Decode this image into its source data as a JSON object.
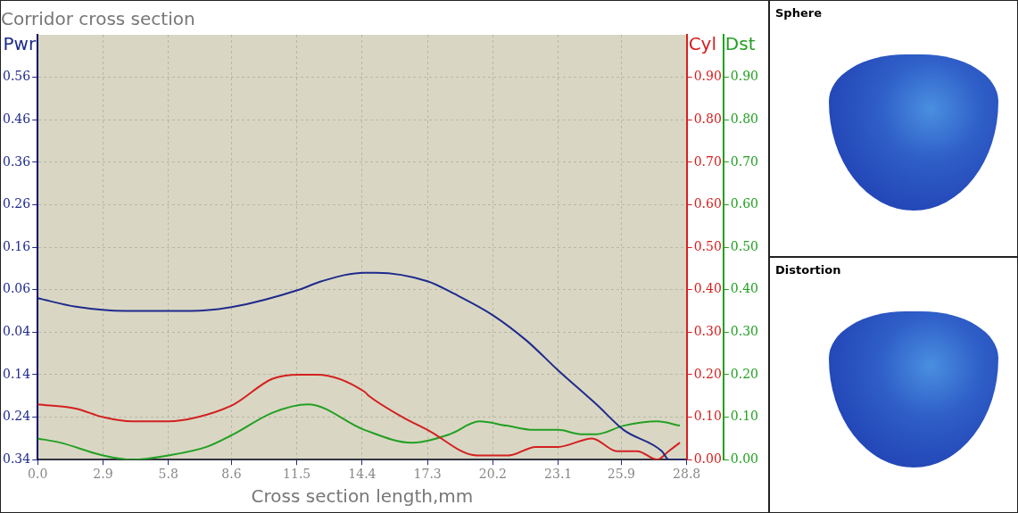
{
  "chart_data": [
    {
      "type": "line",
      "title": "Corridor cross section",
      "xlabel": "Cross section length,mm",
      "ylabel": "Pwr",
      "y2label": "Cyl",
      "y3label": "Dst",
      "marker": "none",
      "grid": true,
      "legend": false,
      "xlim": [
        0,
        28.8
      ],
      "xticks": [
        {
          "value": 0,
          "label": "0.0"
        },
        2.9,
        5.8,
        8.6,
        11.5,
        14.4,
        17.3,
        20.2,
        23.1,
        25.9,
        28.8
      ],
      "ylim": [
        -0.34,
        0.66
      ],
      "yticks": [
        {
          "value": -0.34,
          "label": "0.34"
        },
        {
          "value": -0.24,
          "label": "0.24"
        },
        {
          "value": -0.14,
          "label": "0.14"
        },
        {
          "value": -0.04,
          "label": "0.04"
        },
        0.06,
        0.16,
        0.26,
        0.36,
        0.46,
        0.56
      ],
      "y2lim": [
        0,
        1.0
      ],
      "y2ticks": [
        {
          "value": 0,
          "label": "0.00"
        },
        {
          "value": 0.1,
          "label": "0.10"
        },
        {
          "value": 0.2,
          "label": "0.20"
        },
        {
          "value": 0.3,
          "label": "0.30"
        },
        {
          "value": 0.4,
          "label": "0.40"
        },
        {
          "value": 0.5,
          "label": "0.50"
        },
        {
          "value": 0.6,
          "label": "0.60"
        },
        {
          "value": 0.7,
          "label": "0.70"
        },
        {
          "value": 0.8,
          "label": "0.80"
        },
        {
          "value": 0.9,
          "label": "0.90"
        }
      ],
      "y3lim": [
        0,
        1.0
      ],
      "y3ticks": [
        {
          "value": 0,
          "label": "0.00"
        },
        {
          "value": 0.1,
          "label": "0.10"
        },
        {
          "value": 0.2,
          "label": "0.20"
        },
        {
          "value": 0.3,
          "label": "0.30"
        },
        {
          "value": 0.4,
          "label": "0.40"
        },
        {
          "value": 0.5,
          "label": "0.50"
        },
        {
          "value": 0.6,
          "label": "0.60"
        },
        {
          "value": 0.7,
          "label": "0.70"
        },
        {
          "value": 0.8,
          "label": "0.80"
        },
        {
          "value": 0.9,
          "label": "0.90"
        }
      ],
      "series": [
        {
          "color": "#1f2a8c",
          "x": [
            0,
            1.7,
            3.9,
            6.8,
            8.7,
            11.6,
            12.6,
            14.5,
            15.0,
            17.3,
            18.5,
            20.2,
            21.7,
            23.1,
            24.8,
            26.0,
            27.7,
            28.0,
            28.8
          ],
          "values": [
            0.04,
            0.02,
            0.01,
            0.01,
            0.02,
            0.06,
            0.08,
            0.1,
            0.1,
            0.08,
            0.05,
            0,
            -0.06,
            -0.13,
            -0.21,
            -0.27,
            -0.32,
            -0.34,
            -0.34
          ]
        },
        {
          "color": "#d42020",
          "axis": "y2",
          "x": [
            0,
            1.7,
            2.9,
            4.2,
            5.8,
            7.1,
            8.7,
            10.4,
            11.6,
            12.4,
            14.5,
            14.7,
            16.2,
            17.3,
            19.5,
            20.9,
            22.1,
            23.1,
            24.6,
            25.7,
            26.6,
            27.5,
            28.0,
            28.5
          ],
          "values": [
            0.13,
            0.12,
            0.1,
            0.09,
            0.09,
            0.1,
            0.13,
            0.19,
            0.2,
            0.2,
            0.16,
            0.15,
            0.1,
            0.07,
            0.01,
            0.01,
            0.03,
            0.03,
            0.05,
            0.02,
            0.02,
            0,
            0.02,
            0.04
          ]
        },
        {
          "color": "#22a022",
          "axis": "y3",
          "x": [
            0,
            1.0,
            2.9,
            4.2,
            5.8,
            7.5,
            8.7,
            10.4,
            12.0,
            14.5,
            16.6,
            18.3,
            19.6,
            20.8,
            22.0,
            23.1,
            24.1,
            24.8,
            26.0,
            27.5,
            28.5
          ],
          "values": [
            0.05,
            0.04,
            0.01,
            0,
            0.01,
            0.03,
            0.06,
            0.11,
            0.13,
            0.07,
            0.04,
            0.06,
            0.09,
            0.08,
            0.07,
            0.07,
            0.06,
            0.06,
            0.08,
            0.09,
            0.08
          ]
        }
      ]
    },
    {
      "type": "other",
      "title": "Sphere"
    },
    {
      "type": "other",
      "title": "Distortion"
    }
  ]
}
